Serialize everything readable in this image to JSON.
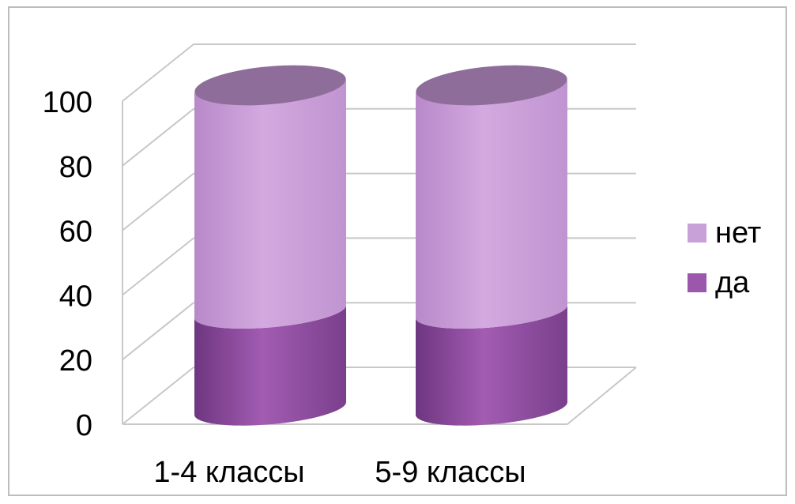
{
  "chart_data": {
    "type": "bar",
    "style": "3d-stacked-cylinder",
    "categories": [
      "1-4 классы",
      "5-9 классы"
    ],
    "series": [
      {
        "name": "да",
        "values": [
          30,
          30
        ],
        "color": "#9b57ab"
      },
      {
        "name": "нет",
        "values": [
          70,
          70
        ],
        "color": "#c9a1d9"
      }
    ],
    "ylim": [
      0,
      100
    ],
    "yticks": [
      "0",
      "20",
      "40",
      "60",
      "80",
      "100"
    ],
    "grid": true,
    "legend_position": "right"
  }
}
